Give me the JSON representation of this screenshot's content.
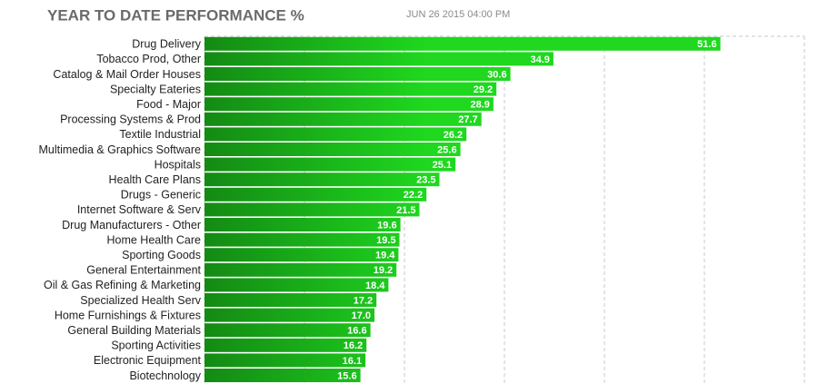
{
  "chart_data": {
    "type": "hbar",
    "title": "YEAR TO DATE PERFORMANCE %",
    "subtitle": "JUN 26 2015 04:00 PM",
    "categories": [
      "Drug Delivery",
      "Tobacco Prod, Other",
      "Catalog & Mail Order Houses",
      "Specialty Eateries",
      "Food - Major",
      "Processing Systems & Prod",
      "Textile Industrial",
      "Multimedia & Graphics Software",
      "Hospitals",
      "Health Care Plans",
      "Drugs - Generic",
      "Internet Software & Serv",
      "Drug Manufacturers - Other",
      "Home Health Care",
      "Sporting Goods",
      "General Entertainment",
      "Oil & Gas Refining & Marketing",
      "Specialized Health Serv",
      "Home Furnishings & Fixtures",
      "General Building Materials",
      "Sporting Activities",
      "Electronic Equipment",
      "Biotechnology"
    ],
    "values": [
      51.6,
      34.9,
      30.6,
      29.2,
      28.9,
      27.7,
      26.2,
      25.6,
      25.1,
      23.5,
      22.2,
      21.5,
      19.6,
      19.5,
      19.4,
      19.2,
      18.4,
      17.2,
      17,
      16.6,
      16.2,
      16.1,
      15.6
    ],
    "value_labels": [
      "51.6",
      "34.9",
      "30.6",
      "29.2",
      "28.9",
      "27.7",
      "26.2",
      "25.6",
      "25.1",
      "23.5",
      "22.2",
      "21.5",
      "19.6",
      "19.5",
      "19.4",
      "19.2",
      "18.4",
      "17.2",
      "17.0",
      "16.6",
      "16.2",
      "16.1",
      "15.6"
    ],
    "color": "#1fd81f",
    "xlim": [
      0,
      60
    ],
    "xticks": [
      0,
      10,
      20,
      30,
      40,
      50,
      60
    ],
    "grid": true
  }
}
